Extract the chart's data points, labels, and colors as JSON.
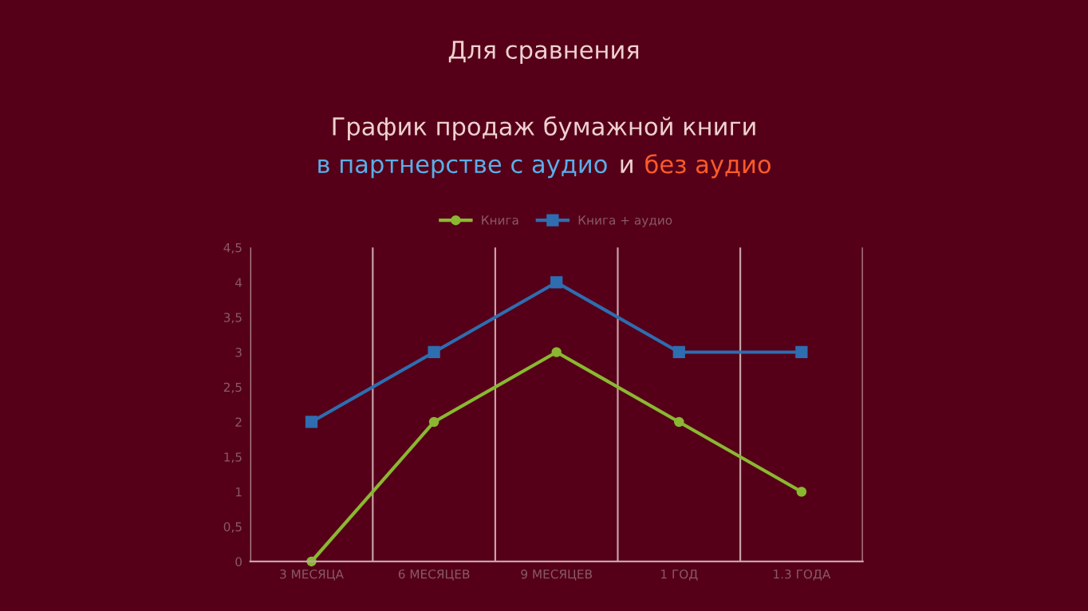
{
  "chart_data": {
    "type": "line",
    "title": "Для сравнения",
    "subtitle": "График продаж бумажной книги",
    "annotations": [
      "в партнерстве с аудио",
      "и",
      "без аудио"
    ],
    "categories": [
      "3 МЕСЯЦА",
      "6 МЕСЯЦЕВ",
      "9 МЕСЯЦЕВ",
      "1 ГОД",
      "1.3 ГОДА"
    ],
    "series": [
      {
        "name": "Книга",
        "color": "#8ab832",
        "values": [
          0,
          2,
          3,
          2,
          1
        ],
        "marker": "circle"
      },
      {
        "name": "Книга + аудио",
        "color": "#2e6db0",
        "values": [
          2,
          3,
          4,
          3,
          3
        ],
        "marker": "square"
      }
    ],
    "ylim": [
      0,
      4.5
    ],
    "yticks": [
      {
        "value": 0,
        "label": "0"
      },
      {
        "value": 0.5,
        "label": "0,5"
      },
      {
        "value": 1,
        "label": "1"
      },
      {
        "value": 1.5,
        "label": "1,5"
      },
      {
        "value": 2,
        "label": "2"
      },
      {
        "value": 2.5,
        "label": "2,5"
      },
      {
        "value": 3,
        "label": "3"
      },
      {
        "value": 3.5,
        "label": "3,5"
      },
      {
        "value": 4,
        "label": "4"
      },
      {
        "value": 4.5,
        "label": "4,5"
      }
    ],
    "grid": "x",
    "legend": "top",
    "line_style": "solid"
  }
}
